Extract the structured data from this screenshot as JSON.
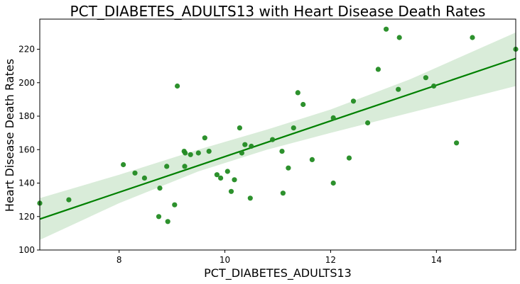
{
  "chart_data": {
    "type": "scatter",
    "title": "PCT_DIABETES_ADULTS13 with Heart Disease Death Rates",
    "xlabel": "PCT_DIABETES_ADULTS13",
    "ylabel": "Heart Disease Death Rates",
    "xlim": [
      6.5,
      15.5
    ],
    "ylim": [
      100,
      238
    ],
    "xticks": [
      8,
      10,
      12,
      14
    ],
    "yticks": [
      100,
      120,
      140,
      160,
      180,
      200,
      220
    ],
    "grid": false,
    "legend": "none",
    "point_color": "#228b22",
    "line_color": "#008000",
    "band_color": "#d9ecd9",
    "points": [
      {
        "x": 6.5,
        "y": 128
      },
      {
        "x": 7.05,
        "y": 130
      },
      {
        "x": 8.08,
        "y": 151
      },
      {
        "x": 8.3,
        "y": 146
      },
      {
        "x": 8.48,
        "y": 143
      },
      {
        "x": 8.75,
        "y": 120
      },
      {
        "x": 8.77,
        "y": 137
      },
      {
        "x": 8.9,
        "y": 150
      },
      {
        "x": 8.92,
        "y": 117
      },
      {
        "x": 9.05,
        "y": 127
      },
      {
        "x": 9.1,
        "y": 198
      },
      {
        "x": 9.23,
        "y": 159
      },
      {
        "x": 9.24,
        "y": 150
      },
      {
        "x": 9.25,
        "y": 158
      },
      {
        "x": 9.35,
        "y": 157
      },
      {
        "x": 9.5,
        "y": 158
      },
      {
        "x": 9.62,
        "y": 167
      },
      {
        "x": 9.7,
        "y": 159
      },
      {
        "x": 9.85,
        "y": 145
      },
      {
        "x": 9.92,
        "y": 143
      },
      {
        "x": 10.05,
        "y": 147
      },
      {
        "x": 10.12,
        "y": 135
      },
      {
        "x": 10.18,
        "y": 142
      },
      {
        "x": 10.28,
        "y": 173
      },
      {
        "x": 10.32,
        "y": 158
      },
      {
        "x": 10.38,
        "y": 163
      },
      {
        "x": 10.48,
        "y": 131
      },
      {
        "x": 10.5,
        "y": 162
      },
      {
        "x": 10.9,
        "y": 166
      },
      {
        "x": 11.08,
        "y": 159
      },
      {
        "x": 11.1,
        "y": 134
      },
      {
        "x": 11.2,
        "y": 149
      },
      {
        "x": 11.3,
        "y": 173
      },
      {
        "x": 11.38,
        "y": 194
      },
      {
        "x": 11.48,
        "y": 187
      },
      {
        "x": 11.65,
        "y": 154
      },
      {
        "x": 12.05,
        "y": 179
      },
      {
        "x": 12.05,
        "y": 140
      },
      {
        "x": 12.35,
        "y": 155
      },
      {
        "x": 12.43,
        "y": 189
      },
      {
        "x": 12.7,
        "y": 176
      },
      {
        "x": 12.9,
        "y": 208
      },
      {
        "x": 13.05,
        "y": 232
      },
      {
        "x": 13.28,
        "y": 196
      },
      {
        "x": 13.3,
        "y": 227
      },
      {
        "x": 13.8,
        "y": 203
      },
      {
        "x": 13.95,
        "y": 198
      },
      {
        "x": 14.38,
        "y": 164
      },
      {
        "x": 14.68,
        "y": 227
      },
      {
        "x": 15.5,
        "y": 220
      }
    ],
    "fit": {
      "x": [
        6.5,
        15.5
      ],
      "y": [
        118.5,
        214.5
      ]
    },
    "band": {
      "x": [
        6.5,
        8.0,
        9.5,
        10.8,
        12.0,
        13.5,
        15.5
      ],
      "lower": [
        106,
        128,
        147,
        160,
        170,
        182,
        198
      ],
      "upper": [
        131,
        145,
        160,
        172,
        184,
        202,
        230
      ]
    }
  }
}
